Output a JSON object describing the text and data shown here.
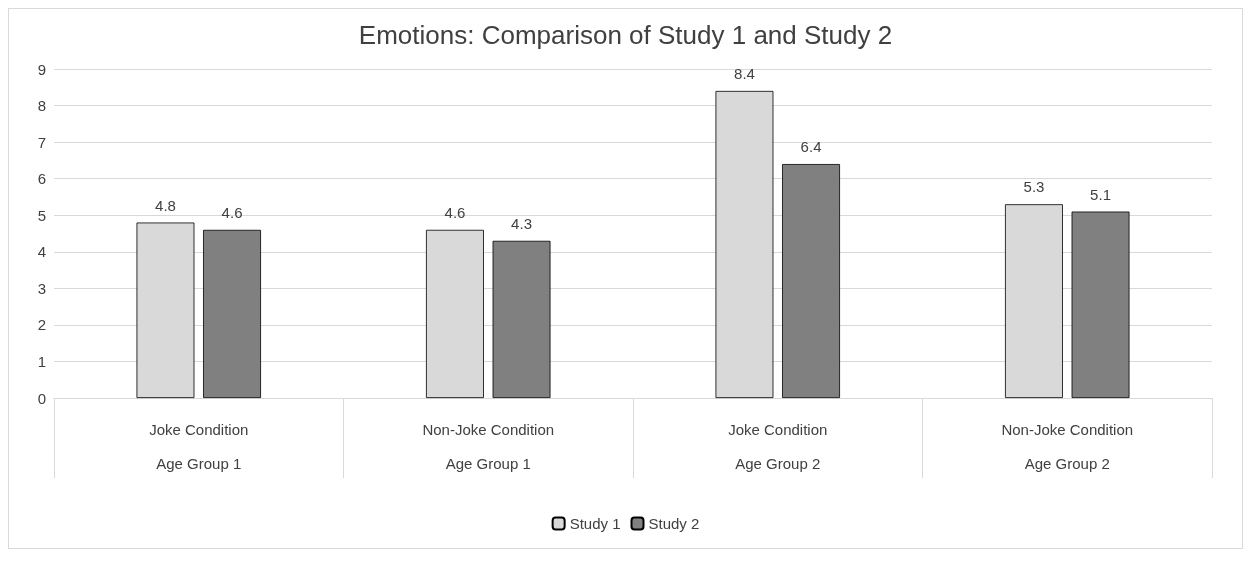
{
  "chart_data": {
    "type": "bar",
    "title": "Emotions: Comparison of Study 1 and Study 2",
    "categories": [
      "Joke Condition\nAge Group 1",
      "Non-Joke Condition\nAge Group 1",
      "Joke Condition\nAge Group 2",
      "Non-Joke Condition\nAge Group 2"
    ],
    "series": [
      {
        "name": "Study 1",
        "color": "#d9d9d9",
        "values": [
          4.8,
          4.6,
          8.4,
          5.3
        ]
      },
      {
        "name": "Study 2",
        "color": "#808080",
        "values": [
          4.6,
          4.3,
          6.4,
          5.1
        ]
      }
    ],
    "ylim": [
      0,
      9
    ],
    "yticks": [
      0,
      1,
      2,
      3,
      4,
      5,
      6,
      7,
      8,
      9
    ],
    "grid": "y",
    "legend": "bottom",
    "data_labels": true
  }
}
